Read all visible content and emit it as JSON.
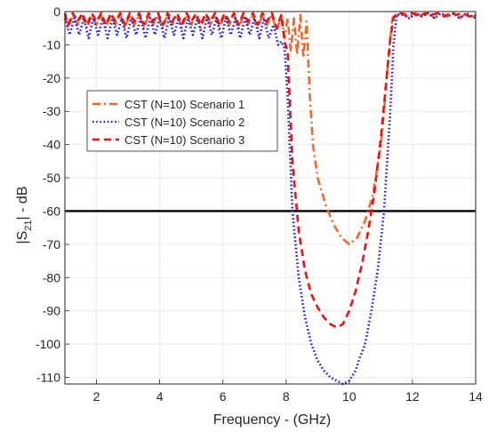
{
  "chart_data": {
    "type": "line",
    "title": "",
    "xlabel": "Frequency - (GHz)",
    "ylabel_main": "|S",
    "ylabel_sub": "21",
    "ylabel_tail": "| - dB",
    "xlim": [
      1,
      14
    ],
    "ylim": [
      -112,
      0
    ],
    "xticks": [
      2,
      4,
      6,
      8,
      10,
      12,
      14
    ],
    "yticks": [
      0,
      -10,
      -20,
      -30,
      -40,
      -50,
      -60,
      -70,
      -80,
      -90,
      -100,
      -110
    ],
    "grid": true,
    "legend_position": "upper-left inside",
    "reference_line": {
      "y": -60,
      "color": "#000000"
    },
    "series": [
      {
        "name": "CST (N=10) Scenario 1",
        "color": "#EE6A2C",
        "dash": "dashdot",
        "x": [
          1.0,
          1.1,
          1.25,
          1.4,
          1.55,
          1.7,
          1.85,
          2.0,
          2.15,
          2.3,
          2.45,
          2.6,
          2.75,
          2.9,
          3.05,
          3.2,
          3.35,
          3.5,
          3.65,
          3.8,
          3.95,
          4.1,
          4.25,
          4.4,
          4.55,
          4.7,
          4.85,
          5.0,
          5.15,
          5.3,
          5.45,
          5.6,
          5.75,
          5.9,
          6.05,
          6.2,
          6.35,
          6.5,
          6.65,
          6.8,
          6.95,
          7.1,
          7.25,
          7.4,
          7.55,
          7.7,
          7.85,
          7.95,
          8.05,
          8.15,
          8.25,
          8.35,
          8.45,
          8.55,
          8.65,
          8.75,
          8.85,
          9.0,
          9.25,
          9.5,
          9.75,
          10.0,
          10.25,
          10.5,
          10.75,
          11.0,
          11.1,
          11.2,
          11.3,
          11.35,
          11.4,
          11.5,
          11.7,
          11.9,
          12.1,
          12.3,
          12.5,
          12.7,
          12.9,
          13.1,
          13.3,
          13.5,
          13.7,
          13.9,
          14.0
        ],
        "y": [
          -1,
          -5,
          -1,
          -4,
          -1,
          -5,
          -1,
          -4,
          -1,
          -5,
          -1,
          -4,
          -1,
          -5,
          -1,
          -4,
          -1,
          -5,
          -1,
          -4,
          -1,
          -5,
          -1,
          -4,
          -1,
          -5,
          -1,
          -4,
          -1,
          -5,
          -1,
          -4,
          -1,
          -5,
          -1,
          -4,
          -1,
          -5,
          -1,
          -4,
          -1,
          -5,
          -1,
          -4,
          -1,
          -6,
          -1,
          -8,
          -2,
          -12,
          -2,
          -13,
          -1,
          -14,
          -3,
          -25,
          -40,
          -50,
          -58,
          -64,
          -68,
          -70,
          -68,
          -63,
          -55,
          -40,
          -30,
          -18,
          -8,
          -3,
          -1,
          -1,
          -0.5,
          -2,
          -0.5,
          -1.5,
          -0.5,
          -2,
          -0.5,
          -1.5,
          -0.5,
          -2,
          -0.5,
          -1.5,
          -1
        ]
      },
      {
        "name": "CST (N=10) Scenario 2",
        "color": "#1A1AE6",
        "dash": "dotted",
        "x": [
          1.0,
          1.15,
          1.3,
          1.45,
          1.6,
          1.75,
          1.9,
          2.05,
          2.2,
          2.35,
          2.5,
          2.65,
          2.8,
          2.95,
          3.1,
          3.25,
          3.4,
          3.55,
          3.7,
          3.85,
          4.0,
          4.15,
          4.3,
          4.45,
          4.6,
          4.75,
          4.9,
          5.05,
          5.2,
          5.35,
          5.5,
          5.65,
          5.8,
          5.95,
          6.1,
          6.25,
          6.4,
          6.55,
          6.7,
          6.85,
          7.0,
          7.15,
          7.3,
          7.45,
          7.6,
          7.75,
          7.85,
          7.95,
          8.05,
          8.2,
          8.4,
          8.6,
          8.8,
          9.0,
          9.2,
          9.4,
          9.6,
          9.8,
          10.0,
          10.2,
          10.3,
          10.5,
          10.7,
          10.9,
          11.1,
          11.3,
          11.4,
          11.5,
          11.6,
          11.7,
          11.9,
          12.1,
          12.3,
          12.5,
          12.7,
          12.9,
          13.1,
          13.3,
          13.5,
          13.7,
          13.9,
          14.0
        ],
        "y": [
          -2,
          -7,
          -2,
          -7,
          -2,
          -8,
          -2,
          -7,
          -2,
          -8,
          -2,
          -7,
          -2,
          -8,
          -2,
          -7,
          -2,
          -8,
          -2,
          -7,
          -2,
          -8,
          -2,
          -7,
          -2,
          -8,
          -2,
          -7,
          -2,
          -8,
          -2,
          -7,
          -2,
          -8,
          -2,
          -7,
          -2,
          -8,
          -2,
          -7,
          -2,
          -8,
          -2,
          -8,
          -4,
          -10,
          -9,
          -11,
          -25,
          -60,
          -80,
          -92,
          -100,
          -105,
          -108,
          -110,
          -111,
          -112,
          -111,
          -108,
          -105,
          -100,
          -90,
          -78,
          -60,
          -30,
          -10,
          -1,
          -1,
          -1,
          -2,
          -0.5,
          -1.5,
          -0.5,
          -2,
          -0.5,
          -1.5,
          -0.5,
          -2,
          -0.5,
          -1.5,
          -2
        ]
      },
      {
        "name": "CST (N=10) Scenario 3",
        "color": "#EE1111",
        "dash": "dashed",
        "x": [
          1.0,
          1.1,
          1.25,
          1.4,
          1.55,
          1.7,
          1.85,
          2.0,
          2.15,
          2.3,
          2.45,
          2.6,
          2.75,
          2.9,
          3.05,
          3.2,
          3.35,
          3.5,
          3.65,
          3.8,
          3.95,
          4.1,
          4.25,
          4.4,
          4.55,
          4.7,
          4.85,
          5.0,
          5.15,
          5.3,
          5.45,
          5.6,
          5.75,
          5.9,
          6.05,
          6.2,
          6.35,
          6.5,
          6.65,
          6.8,
          6.95,
          7.1,
          7.25,
          7.4,
          7.55,
          7.7,
          7.85,
          7.95,
          8.05,
          8.2,
          8.4,
          8.6,
          8.8,
          9.0,
          9.2,
          9.4,
          9.6,
          9.8,
          10.0,
          10.2,
          10.4,
          10.6,
          10.8,
          11.0,
          11.2,
          11.3,
          11.4,
          11.5,
          11.6,
          11.8,
          12.0,
          12.2,
          12.4,
          12.6,
          12.8,
          13.0,
          13.2,
          13.4,
          13.6,
          13.8,
          14.0
        ],
        "y": [
          -0.5,
          -4,
          -0.5,
          -3,
          -0.5,
          -4,
          -0.5,
          -3,
          -0.5,
          -4,
          -0.5,
          -3,
          -0.5,
          -4,
          -0.5,
          -3,
          -0.5,
          -4,
          -0.5,
          -3,
          -0.5,
          -4,
          -0.5,
          -3,
          -0.5,
          -4,
          -0.5,
          -3,
          -0.5,
          -4,
          -0.5,
          -3,
          -0.5,
          -4,
          -0.5,
          -3,
          -0.5,
          -4,
          -0.5,
          -3,
          -0.5,
          -4,
          -0.5,
          -3,
          -0.5,
          -5,
          -1,
          -9,
          -12,
          -45,
          -66,
          -78,
          -85,
          -89,
          -92,
          -94,
          -95,
          -94,
          -90,
          -84,
          -76,
          -66,
          -54,
          -38,
          -18,
          -8,
          -2,
          -0.5,
          -0.5,
          -1,
          -0.5,
          -1.5,
          -0.5,
          -1,
          -0.5,
          -1.5,
          -0.5,
          -1,
          -0.5,
          -1.5,
          -1
        ]
      }
    ]
  }
}
